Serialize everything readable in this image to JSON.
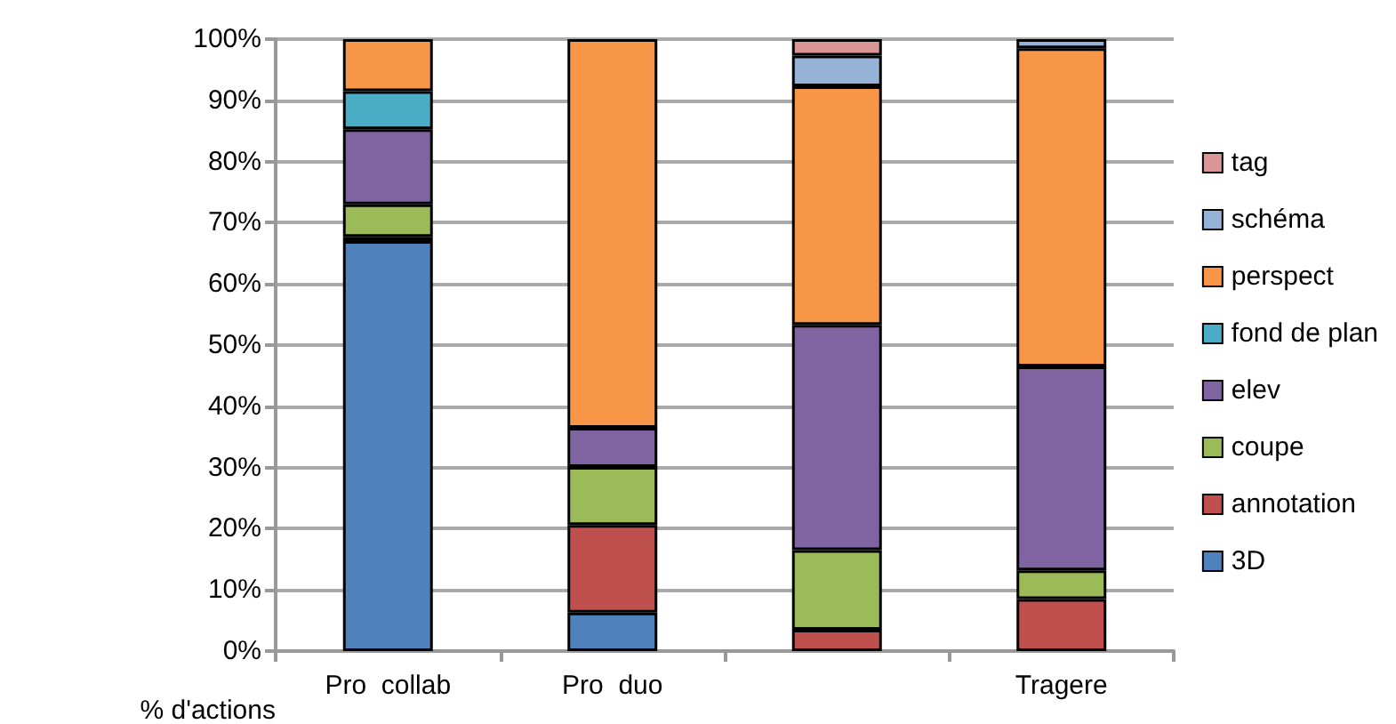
{
  "chart_data": {
    "type": "bar",
    "stacked": true,
    "ylabel": "% d'actions",
    "categories": [
      "Pro  collab",
      "Pro  duo",
      null,
      "Tragere"
    ],
    "series": [
      {
        "name": "3D",
        "color": "#4f81bd",
        "values": [
          67,
          6.3,
          null,
          null
        ]
      },
      {
        "name": "annotation",
        "color": "#c0504d",
        "values": [
          0.7,
          14.3,
          3.5,
          8.5
        ]
      },
      {
        "name": "coupe",
        "color": "#9bbb59",
        "values": [
          5.3,
          9.5,
          13,
          4.7
        ]
      },
      {
        "name": "elev",
        "color": "#8064a2",
        "values": [
          12.3,
          6.4,
          36.8,
          33.3
        ]
      },
      {
        "name": "fond de plan",
        "color": "#4bacc6",
        "values": [
          6.2,
          null,
          null,
          null
        ]
      },
      {
        "name": "perspect",
        "color": "#f79646",
        "values": [
          8.5,
          63.5,
          39,
          52
        ]
      },
      {
        "name": "schéma",
        "color": "#95b3d7",
        "values": [
          null,
          null,
          5,
          1.5
        ]
      },
      {
        "name": "tag",
        "color": "#d99694",
        "values": [
          null,
          null,
          2.7,
          null
        ]
      }
    ],
    "ylim": [
      0,
      100
    ],
    "yticks": [
      {
        "value": 0,
        "label": "0%"
      },
      {
        "value": 10,
        "label": "10%"
      },
      {
        "value": 20,
        "label": "20%"
      },
      {
        "value": 30,
        "label": "30%"
      },
      {
        "value": 40,
        "label": "40%"
      },
      {
        "value": 50,
        "label": "50%"
      },
      {
        "value": 60,
        "label": "60%"
      },
      {
        "value": 70,
        "label": "70%"
      },
      {
        "value": 80,
        "label": "80%"
      },
      {
        "value": 90,
        "label": "90%"
      },
      {
        "value": 100,
        "label": "100%"
      }
    ],
    "grid": "y",
    "legend": "right"
  }
}
